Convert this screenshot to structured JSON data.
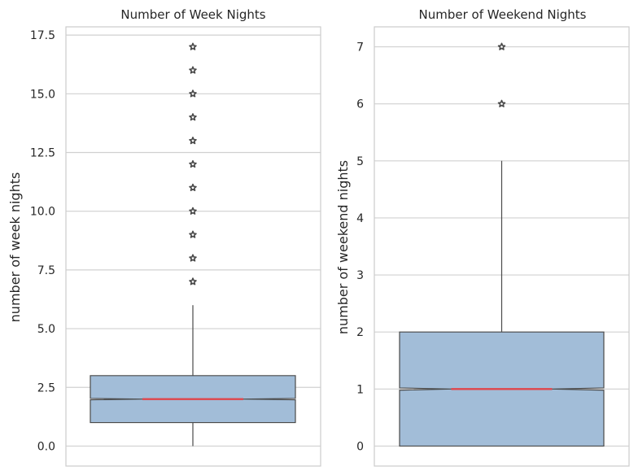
{
  "colors": {
    "box_fill": "#a2bdd8",
    "box_edge": "#4a4a4a",
    "median": "#e0464b",
    "grid": "#d0d0d0",
    "spine": "#cccccc",
    "outlier_edge": "#4a4a4a"
  },
  "chart_data": [
    {
      "type": "boxplot",
      "title": "Number of Week Nights",
      "ylabel": "number of week nights",
      "xlabel": "",
      "ylim": [
        -0.85,
        17.85
      ],
      "yticks": [
        0.0,
        2.5,
        5.0,
        7.5,
        10.0,
        12.5,
        15.0,
        17.5
      ],
      "ytick_labels": [
        "0.0",
        "2.5",
        "5.0",
        "7.5",
        "10.0",
        "12.5",
        "15.0",
        "17.5"
      ],
      "grid": true,
      "notched": true,
      "box": {
        "min": 0,
        "q1": 1,
        "median": 2,
        "q3": 3,
        "max": 6,
        "notch_low": 1.97,
        "notch_high": 2.03
      },
      "outliers": [
        7,
        8,
        9,
        10,
        11,
        12,
        13,
        14,
        15,
        16,
        17
      ]
    },
    {
      "type": "boxplot",
      "title": "Number of Weekend Nights",
      "ylabel": "number of weekend nights",
      "xlabel": "",
      "ylim": [
        -0.35,
        7.35
      ],
      "yticks": [
        0,
        1,
        2,
        3,
        4,
        5,
        6,
        7
      ],
      "ytick_labels": [
        "0",
        "1",
        "2",
        "3",
        "4",
        "5",
        "6",
        "7"
      ],
      "grid": true,
      "notched": true,
      "box": {
        "min": 0,
        "q1": 0,
        "median": 1,
        "q3": 2,
        "max": 5,
        "notch_low": 0.98,
        "notch_high": 1.02
      },
      "outliers": [
        6,
        7
      ]
    }
  ]
}
